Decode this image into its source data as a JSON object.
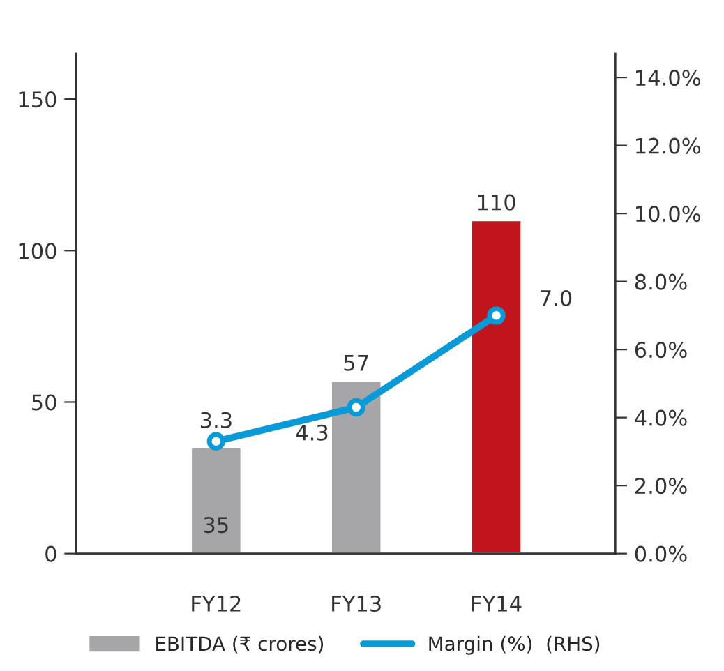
{
  "chart_data": {
    "type": "bar",
    "categories": [
      "FY12",
      "FY13",
      "FY14"
    ],
    "series": [
      {
        "name": "EBITDA (₹ crores)",
        "color": "#a6a6a8",
        "colors": [
          "#a6a6a8",
          "#a6a6a8",
          "#c0151c"
        ],
        "values": [
          35,
          57,
          110
        ]
      },
      {
        "name": "Margin (%)",
        "type": "line",
        "axis": "y2",
        "color": "#0a9ad8",
        "values": [
          3.3,
          4.3,
          7.0
        ],
        "value_labels": [
          "3.3",
          "4.3",
          "7.0"
        ],
        "marker": "circle"
      }
    ],
    "ylim": [
      0,
      165
    ],
    "yticks": [
      0,
      50,
      100,
      150
    ],
    "y2lim": [
      0,
      14.7
    ],
    "y2ticks": [
      {
        "value": 0,
        "label": "0.0%"
      },
      {
        "value": 2,
        "label": "2.0%"
      },
      {
        "value": 4,
        "label": "4.0%"
      },
      {
        "value": 6,
        "label": "6.0%"
      },
      {
        "value": 8,
        "label": "8.0%"
      },
      {
        "value": 10,
        "label": "10.0%"
      },
      {
        "value": 12,
        "label": "12.0%"
      },
      {
        "value": 14,
        "label": "14.0%"
      }
    ],
    "data_labels": true,
    "legend": "bottom",
    "grid": false,
    "annotations": [
      "(RHS)"
    ]
  }
}
